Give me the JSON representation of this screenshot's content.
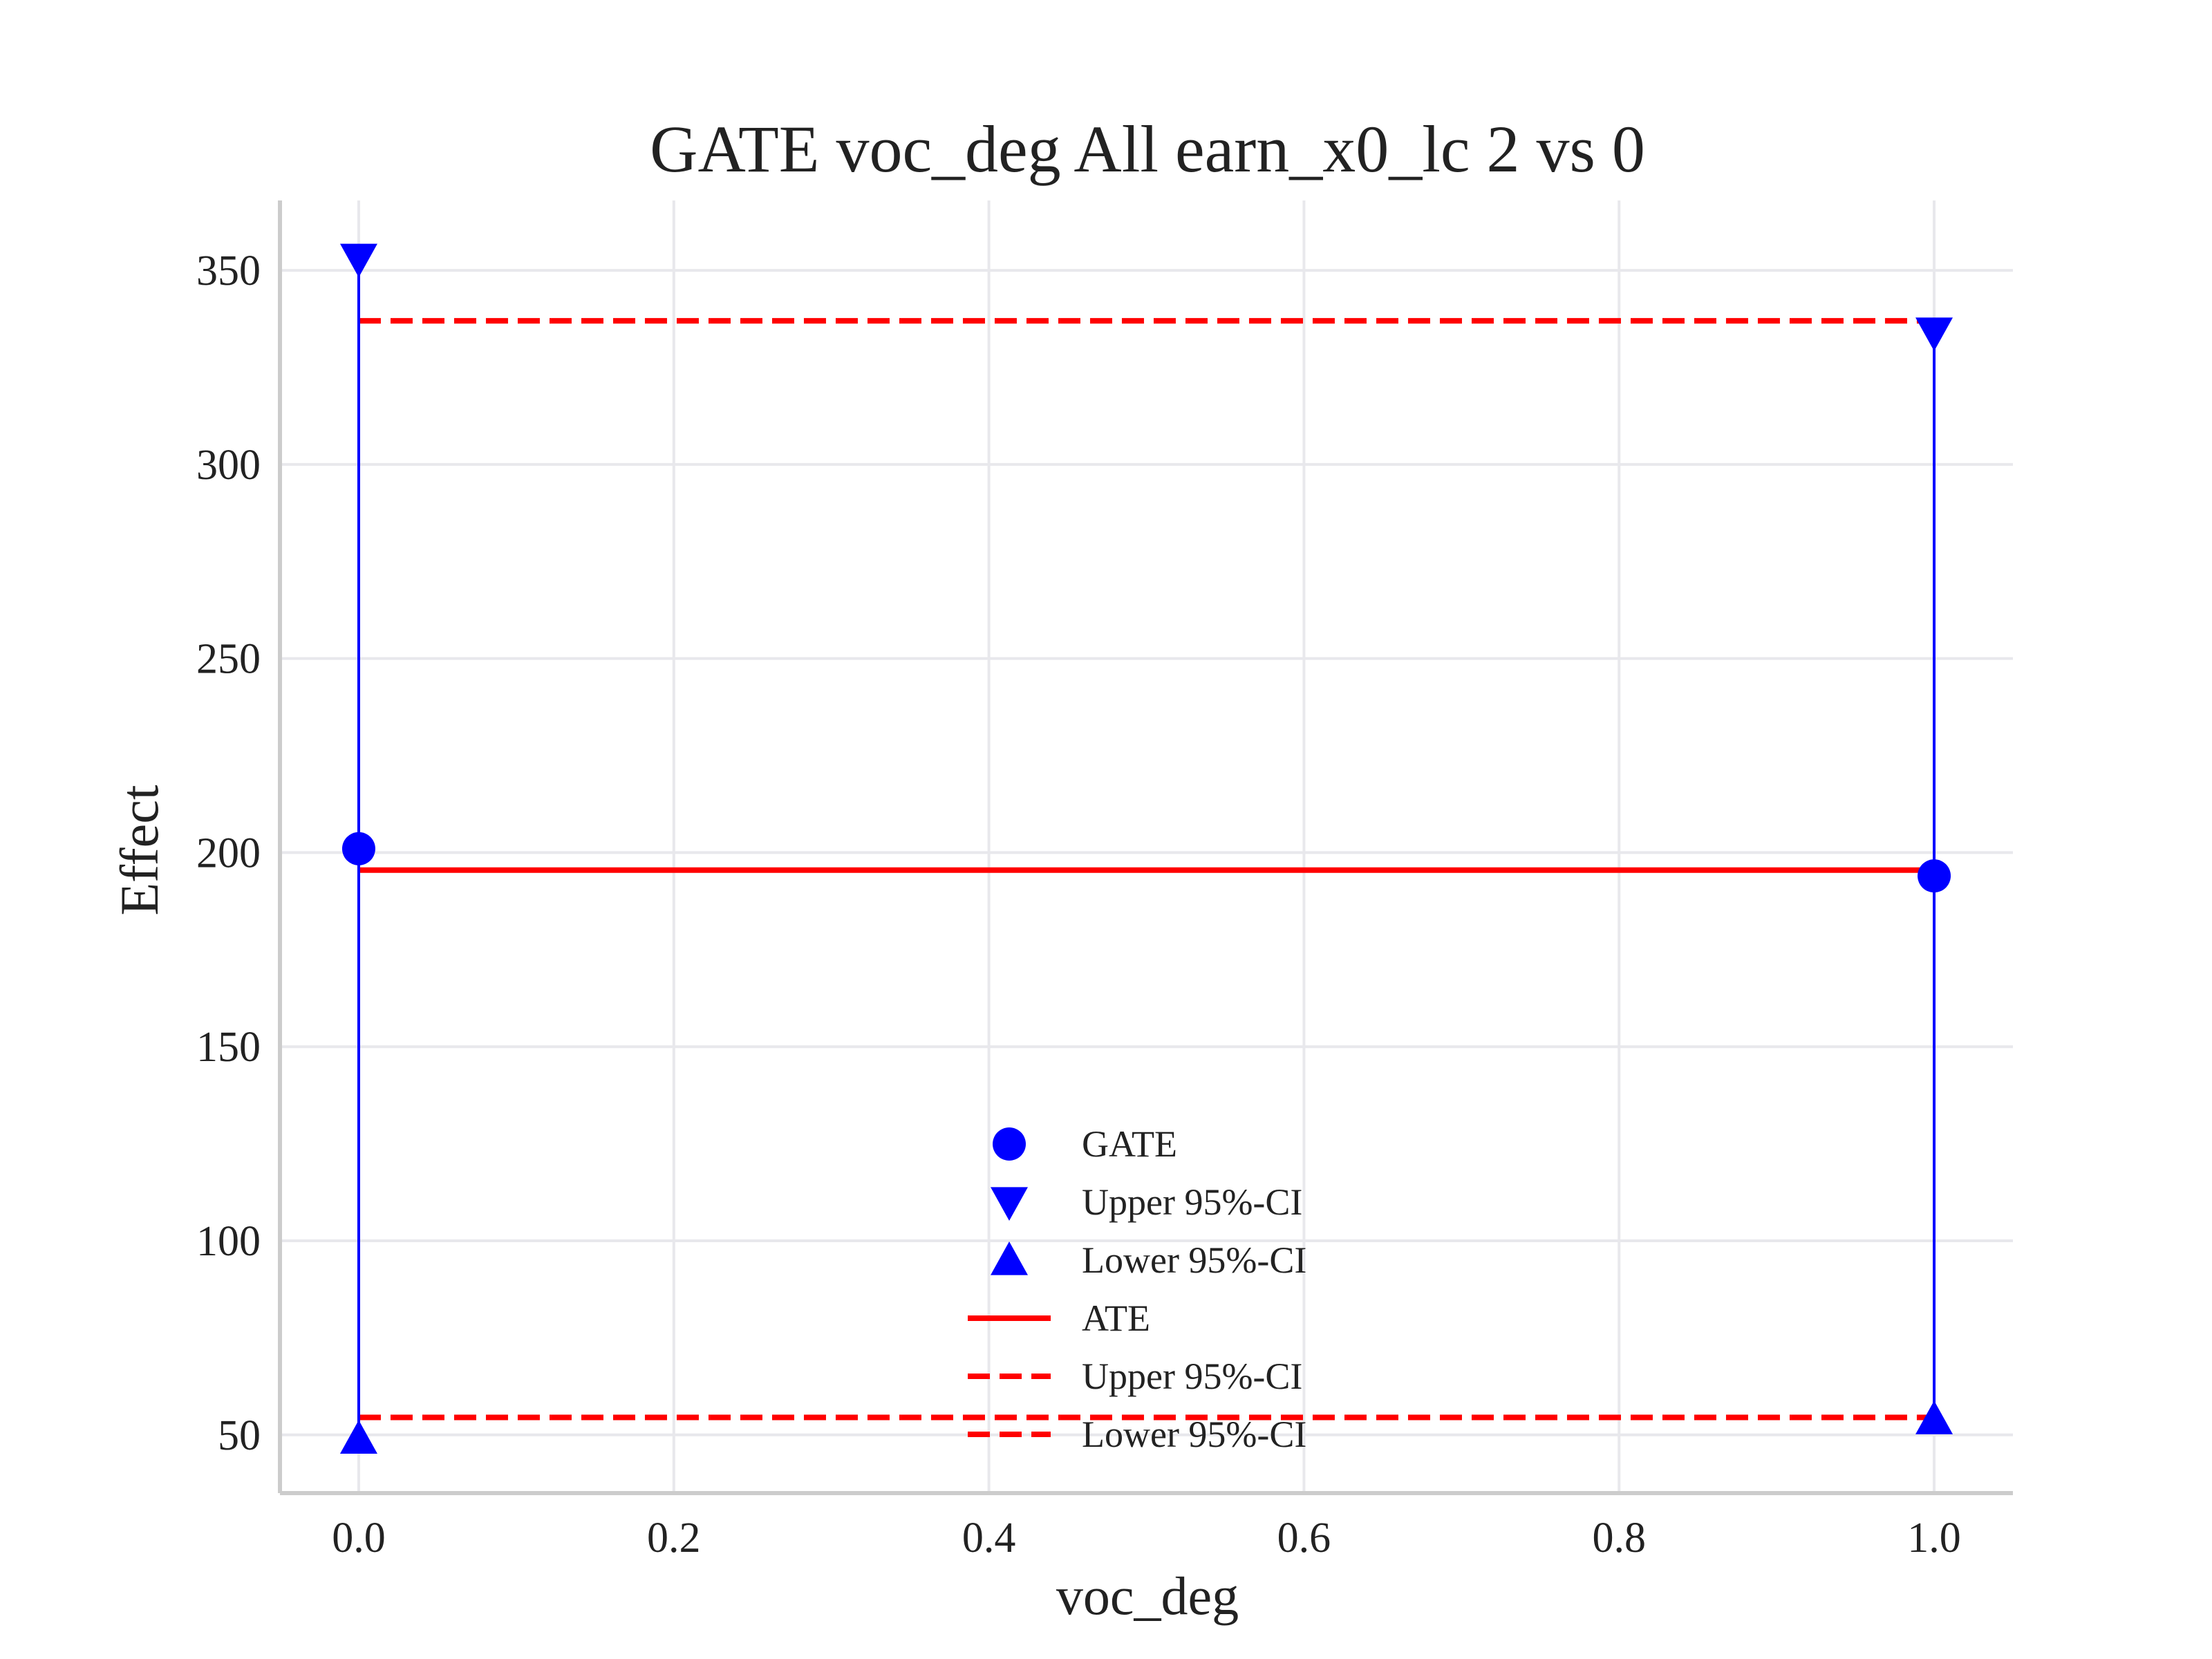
{
  "chart_data": {
    "type": "scatter",
    "title": "GATE voc_deg All earn_x0_lc  2 vs 0",
    "xlabel": "voc_deg",
    "ylabel": "Effect",
    "xlim": [
      -0.05,
      1.05
    ],
    "ylim": [
      35,
      368
    ],
    "xticks": [
      0.0,
      0.2,
      0.4,
      0.6,
      0.8,
      1.0
    ],
    "xtick_labels": [
      "0.0",
      "0.2",
      "0.4",
      "0.6",
      "0.8",
      "1.0"
    ],
    "yticks": [
      50,
      100,
      150,
      200,
      250,
      300,
      350
    ],
    "ytick_labels": [
      "50",
      "100",
      "150",
      "200",
      "250",
      "300",
      "350"
    ],
    "grid": true,
    "legend_position": "bottom-center",
    "x": [
      0.0,
      1.0
    ],
    "series": [
      {
        "name": "GATE",
        "marker": "circle",
        "color": "#0000ff",
        "values": [
          201,
          194
        ]
      },
      {
        "name": "Upper 95%-CI",
        "marker": "triangle-down",
        "color": "#0000ff",
        "values": [
          353,
          334
        ]
      },
      {
        "name": "Lower 95%-CI",
        "marker": "triangle-up",
        "color": "#0000ff",
        "values": [
          49,
          54
        ]
      }
    ],
    "reference_lines": [
      {
        "name": "ATE",
        "style": "solid",
        "color": "#ff0000",
        "value": 195.5
      },
      {
        "name": "Upper 95%-CI",
        "style": "dashed",
        "color": "#ff0000",
        "value": 337
      },
      {
        "name": "Lower 95%-CI",
        "style": "dashed",
        "color": "#ff0000",
        "value": 54.5
      }
    ],
    "errorbar_color": "#0000ff"
  }
}
